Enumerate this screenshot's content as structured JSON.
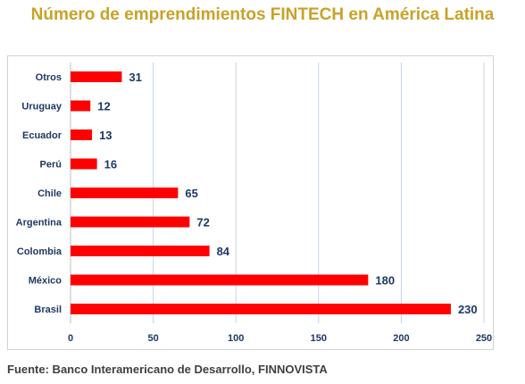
{
  "chart_data": {
    "type": "bar",
    "orientation": "horizontal",
    "title": "Número de emprendimientos FINTECH en América Latina",
    "categories": [
      "Otros",
      "Uruguay",
      "Ecuador",
      "Perú",
      "Chile",
      "Argentina",
      "Colombia",
      "México",
      "Brasil"
    ],
    "values": [
      31,
      12,
      13,
      16,
      65,
      72,
      84,
      180,
      230
    ],
    "x_ticks": [
      0,
      50,
      100,
      150,
      200,
      250
    ],
    "xlim": [
      0,
      250
    ],
    "grid": true,
    "legend": "none",
    "colors": {
      "bar": "#ff0000",
      "value_label": "#1f3864",
      "tick_label": "#1f3864",
      "grid": "#c5d3e8",
      "title": "#c9a227"
    }
  },
  "source": "Fuente: Banco Interamericano de Desarrollo, FINNOVISTA"
}
